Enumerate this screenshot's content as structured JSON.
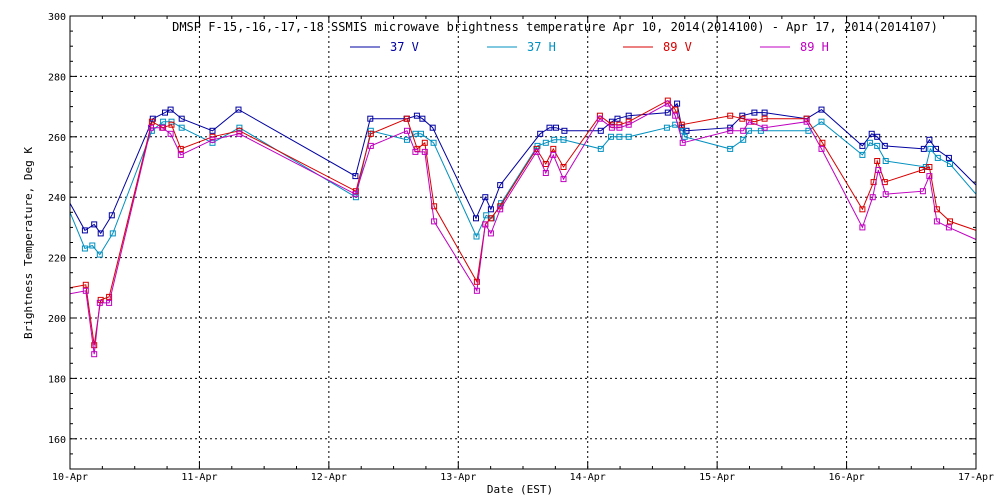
{
  "chart_data": {
    "type": "line",
    "title": "DMSP F-15,-16,-17,-18 SSMIS microwave brightness temperature Apr 10, 2014(2014100) - Apr 17, 2014(2014107)",
    "xlabel": "Date (EST)",
    "ylabel": "Brightness Temperature, Deg K",
    "xlim": [
      0,
      7
    ],
    "ylim": [
      150,
      300
    ],
    "xticks": [
      {
        "v": 0,
        "label": "10-Apr"
      },
      {
        "v": 1,
        "label": "11-Apr"
      },
      {
        "v": 2,
        "label": "12-Apr"
      },
      {
        "v": 3,
        "label": "13-Apr"
      },
      {
        "v": 4,
        "label": "14-Apr"
      },
      {
        "v": 5,
        "label": "15-Apr"
      },
      {
        "v": 6,
        "label": "16-Apr"
      },
      {
        "v": 7,
        "label": "17-Apr"
      }
    ],
    "yticks": [
      160,
      180,
      200,
      220,
      240,
      260,
      280,
      300
    ],
    "grid": true,
    "legend_position": "top-center",
    "series": [
      {
        "name": "37 V",
        "color": "#0000a0",
        "points": [
          [
            0.0,
            238
          ],
          [
            0.115,
            229
          ],
          [
            0.187,
            231
          ],
          [
            0.237,
            228
          ],
          [
            0.323,
            234
          ],
          [
            0.64,
            266
          ],
          [
            0.734,
            268
          ],
          [
            0.777,
            269
          ],
          [
            0.863,
            266
          ],
          [
            1.101,
            262
          ],
          [
            1.302,
            269
          ],
          [
            2.205,
            247
          ],
          [
            2.32,
            266
          ],
          [
            2.601,
            266
          ],
          [
            2.68,
            267
          ],
          [
            2.723,
            266
          ],
          [
            2.802,
            263
          ],
          [
            3.137,
            233
          ],
          [
            3.209,
            240
          ],
          [
            3.252,
            236
          ],
          [
            3.324,
            244
          ],
          [
            3.633,
            261
          ],
          [
            3.705,
            263
          ],
          [
            3.755,
            263
          ],
          [
            3.82,
            262
          ],
          [
            4.101,
            262
          ],
          [
            4.187,
            265
          ],
          [
            4.23,
            266
          ],
          [
            4.317,
            267
          ],
          [
            4.619,
            268
          ],
          [
            4.691,
            271
          ],
          [
            4.727,
            263
          ],
          [
            4.763,
            262
          ],
          [
            5.101,
            263
          ],
          [
            5.194,
            267
          ],
          [
            5.288,
            268
          ],
          [
            5.367,
            268
          ],
          [
            5.691,
            266
          ],
          [
            5.806,
            269
          ],
          [
            6.122,
            257
          ],
          [
            6.194,
            261
          ],
          [
            6.237,
            260
          ],
          [
            6.295,
            257
          ],
          [
            6.597,
            256
          ],
          [
            6.64,
            259
          ],
          [
            6.691,
            256
          ],
          [
            6.791,
            253
          ],
          [
            7.0,
            244
          ]
        ]
      },
      {
        "name": "37 H",
        "color": "#0090c0",
        "points": [
          [
            0.0,
            235
          ],
          [
            0.115,
            223
          ],
          [
            0.172,
            224
          ],
          [
            0.23,
            221
          ],
          [
            0.331,
            228
          ],
          [
            0.633,
            262
          ],
          [
            0.719,
            265
          ],
          [
            0.784,
            265
          ],
          [
            0.863,
            263
          ],
          [
            1.101,
            258
          ],
          [
            1.309,
            263
          ],
          [
            2.209,
            240
          ],
          [
            2.324,
            262
          ],
          [
            2.604,
            259
          ],
          [
            2.669,
            261
          ],
          [
            2.712,
            261
          ],
          [
            2.809,
            258
          ],
          [
            3.141,
            227
          ],
          [
            3.216,
            234
          ],
          [
            3.259,
            233
          ],
          [
            3.331,
            238
          ],
          [
            3.612,
            257
          ],
          [
            3.676,
            258
          ],
          [
            3.741,
            259
          ],
          [
            3.813,
            259
          ],
          [
            4.101,
            256
          ],
          [
            4.18,
            260
          ],
          [
            4.245,
            260
          ],
          [
            4.317,
            260
          ],
          [
            4.612,
            263
          ],
          [
            4.676,
            264
          ],
          [
            4.734,
            262
          ],
          [
            4.749,
            260
          ],
          [
            5.101,
            256
          ],
          [
            5.201,
            259
          ],
          [
            5.245,
            262
          ],
          [
            5.338,
            262
          ],
          [
            5.705,
            262
          ],
          [
            5.806,
            265
          ],
          [
            6.122,
            254
          ],
          [
            6.18,
            258
          ],
          [
            6.237,
            257
          ],
          [
            6.302,
            252
          ],
          [
            6.612,
            250
          ],
          [
            6.647,
            256
          ],
          [
            6.705,
            253
          ],
          [
            6.799,
            251
          ],
          [
            7.0,
            241
          ]
        ]
      },
      {
        "name": "89 V",
        "color": "#d80000",
        "points": [
          [
            0.0,
            210
          ],
          [
            0.122,
            211
          ],
          [
            0.187,
            191
          ],
          [
            0.237,
            206
          ],
          [
            0.302,
            207
          ],
          [
            0.633,
            265
          ],
          [
            0.719,
            263
          ],
          [
            0.784,
            264
          ],
          [
            0.856,
            256
          ],
          [
            1.101,
            260
          ],
          [
            1.309,
            262
          ],
          [
            2.209,
            242
          ],
          [
            2.324,
            261
          ],
          [
            2.604,
            266
          ],
          [
            2.683,
            256
          ],
          [
            2.741,
            258
          ],
          [
            2.813,
            237
          ],
          [
            3.144,
            212
          ],
          [
            3.209,
            231
          ],
          [
            3.252,
            233
          ],
          [
            3.324,
            237
          ],
          [
            3.604,
            256
          ],
          [
            3.676,
            251
          ],
          [
            3.734,
            256
          ],
          [
            3.813,
            250
          ],
          [
            4.094,
            267
          ],
          [
            4.187,
            264
          ],
          [
            4.245,
            264
          ],
          [
            4.317,
            265
          ],
          [
            4.619,
            272
          ],
          [
            4.676,
            269
          ],
          [
            4.727,
            264
          ],
          [
            5.101,
            267
          ],
          [
            5.194,
            266
          ],
          [
            5.288,
            265
          ],
          [
            5.367,
            266
          ],
          [
            5.691,
            266
          ],
          [
            5.813,
            258
          ],
          [
            6.122,
            236
          ],
          [
            6.209,
            245
          ],
          [
            6.237,
            252
          ],
          [
            6.295,
            245
          ],
          [
            6.583,
            249
          ],
          [
            6.64,
            250
          ],
          [
            6.698,
            236
          ],
          [
            6.799,
            232
          ],
          [
            7.0,
            229
          ]
        ]
      },
      {
        "name": "89 H",
        "color": "#c000c0",
        "points": [
          [
            0.0,
            208
          ],
          [
            0.122,
            209
          ],
          [
            0.187,
            188
          ],
          [
            0.23,
            205
          ],
          [
            0.302,
            205
          ],
          [
            0.626,
            263
          ],
          [
            0.712,
            263
          ],
          [
            0.777,
            261
          ],
          [
            0.856,
            254
          ],
          [
            1.101,
            259
          ],
          [
            1.309,
            261
          ],
          [
            2.205,
            241
          ],
          [
            2.324,
            257
          ],
          [
            2.604,
            262
          ],
          [
            2.669,
            255
          ],
          [
            2.741,
            255
          ],
          [
            2.813,
            232
          ],
          [
            3.144,
            209
          ],
          [
            3.209,
            231
          ],
          [
            3.252,
            228
          ],
          [
            3.324,
            236
          ],
          [
            3.604,
            255
          ],
          [
            3.676,
            248
          ],
          [
            3.734,
            254
          ],
          [
            3.813,
            246
          ],
          [
            4.094,
            266
          ],
          [
            4.187,
            263
          ],
          [
            4.245,
            263
          ],
          [
            4.317,
            264
          ],
          [
            4.619,
            271
          ],
          [
            4.676,
            267
          ],
          [
            4.734,
            258
          ],
          [
            5.101,
            262
          ],
          [
            5.201,
            262
          ],
          [
            5.245,
            265
          ],
          [
            5.367,
            263
          ],
          [
            5.691,
            265
          ],
          [
            5.806,
            256
          ],
          [
            6.122,
            230
          ],
          [
            6.202,
            240
          ],
          [
            6.245,
            249
          ],
          [
            6.302,
            241
          ],
          [
            6.59,
            242
          ],
          [
            6.64,
            247
          ],
          [
            6.698,
            232
          ],
          [
            6.791,
            230
          ],
          [
            7.0,
            226
          ]
        ]
      }
    ]
  }
}
